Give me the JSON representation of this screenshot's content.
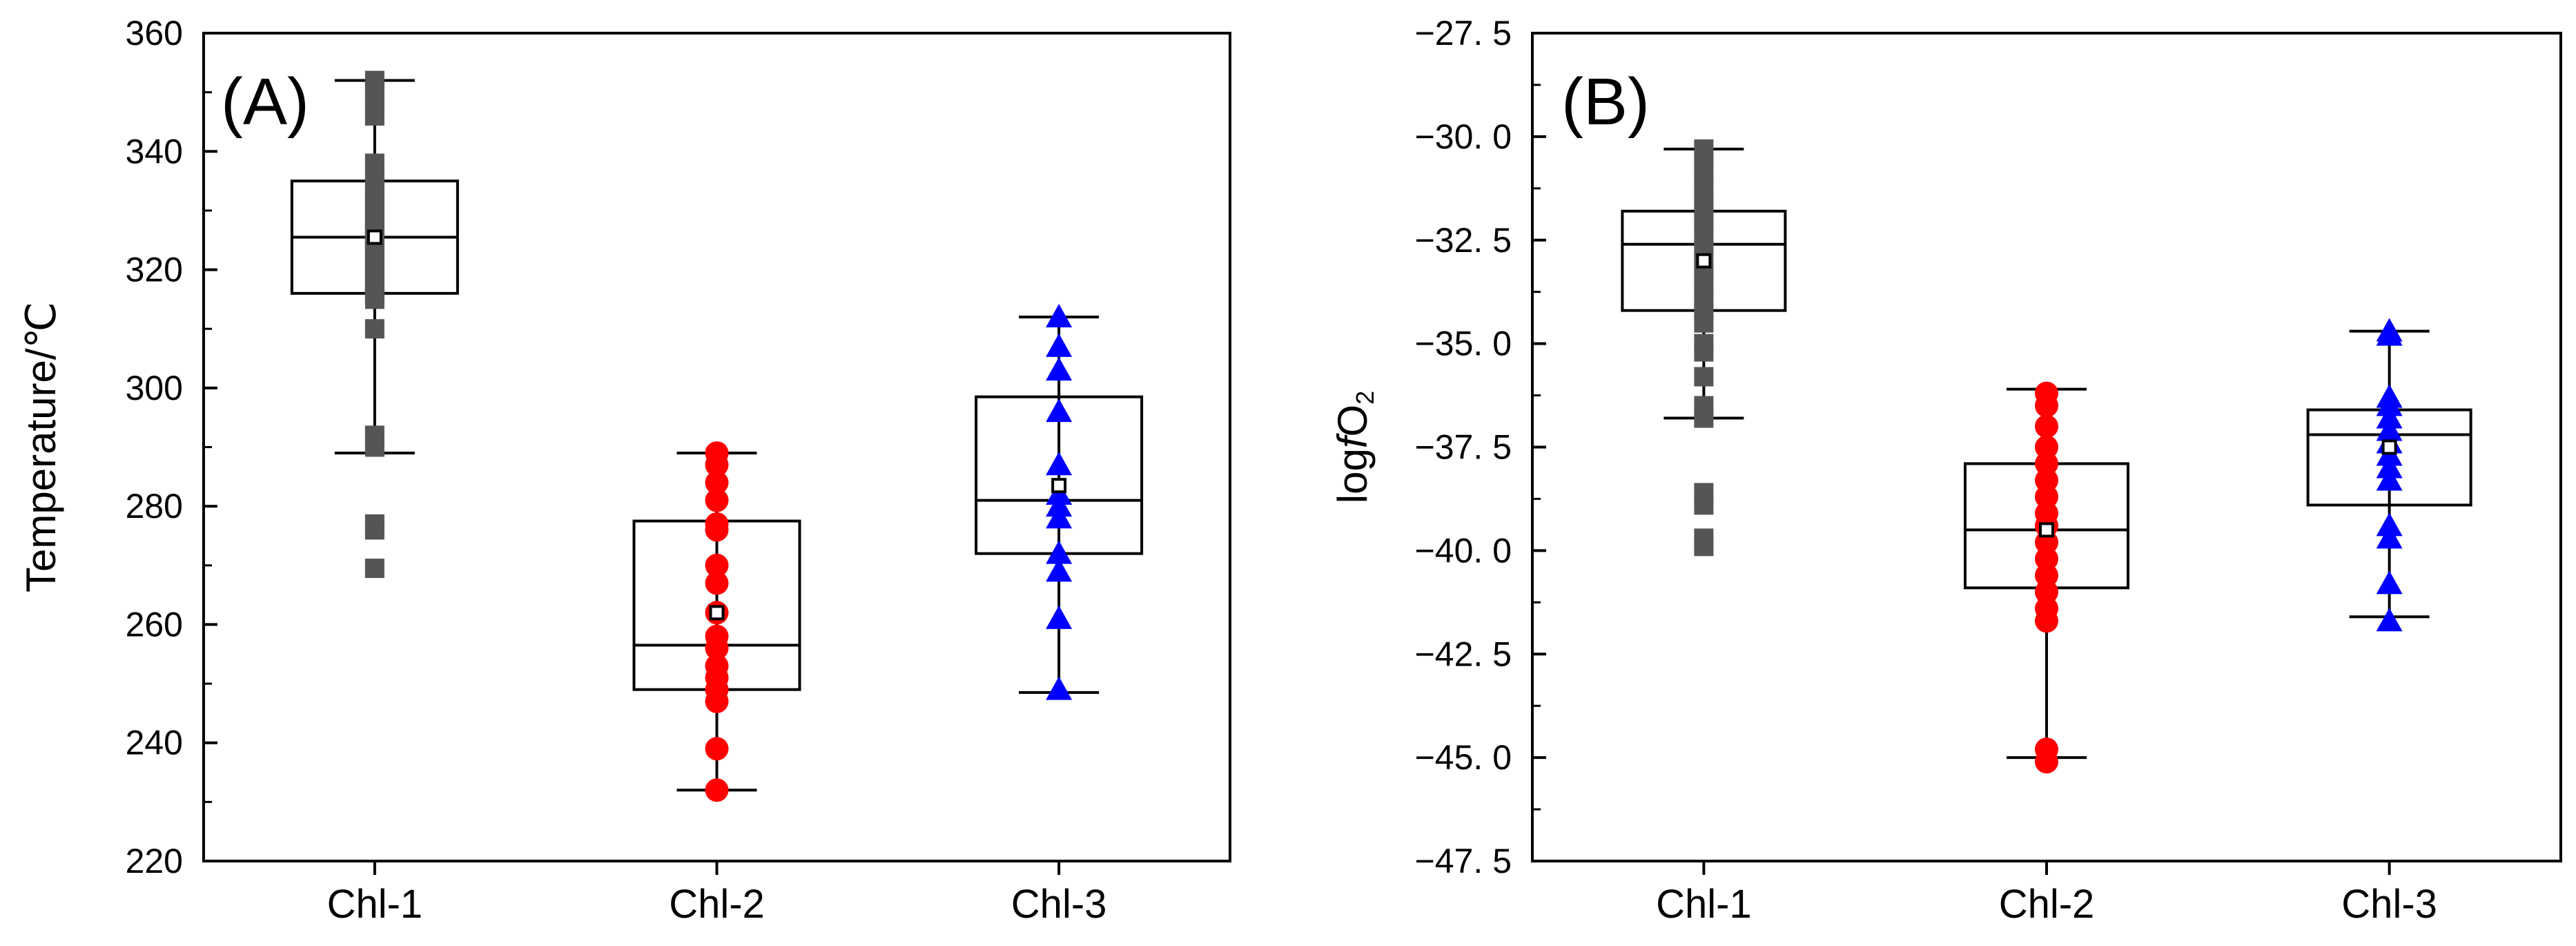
{
  "figure": {
    "background": "#ffffff"
  },
  "chart_data": [
    {
      "type": "box",
      "panel_label": "(A)",
      "title": "",
      "xlabel": "",
      "ylabel": "Temperature/℃",
      "ylim": [
        220,
        360
      ],
      "yticks": [
        220,
        240,
        260,
        280,
        300,
        320,
        340,
        360
      ],
      "ytick_labels": [
        "220",
        "240",
        "260",
        "280",
        "300",
        "320",
        "340",
        "360"
      ],
      "categories": [
        "Chl-1",
        "Chl-2",
        "Chl-3"
      ],
      "boxes": [
        {
          "category": "Chl-1",
          "whisker_low": 289,
          "q1": 316,
          "median": 325.5,
          "q3": 335,
          "whisker_high": 352,
          "mean": 325.5,
          "marker": "square",
          "color": "#555555",
          "points": [
            352,
            350,
            348,
            346,
            338,
            336,
            334,
            333,
            332,
            331,
            330,
            329,
            328,
            327,
            326,
            325,
            324,
            323,
            322,
            321,
            320,
            319,
            318,
            317,
            316,
            315,
            310,
            292,
            290,
            277,
            276,
            269.5
          ]
        },
        {
          "category": "Chl-2",
          "whisker_low": 232,
          "q1": 249,
          "median": 256.5,
          "q3": 277.5,
          "whisker_high": 289,
          "mean": 262,
          "marker": "circle",
          "color": "#ff0000",
          "points": [
            289,
            287,
            284,
            281,
            277,
            276,
            270,
            267,
            262,
            258,
            256,
            253,
            251,
            249,
            247,
            239,
            232
          ]
        },
        {
          "category": "Chl-3",
          "whisker_low": 248.5,
          "q1": 272,
          "median": 281,
          "q3": 298.5,
          "whisker_high": 312,
          "mean": 283.5,
          "marker": "triangle",
          "color": "#0000ff",
          "points": [
            312,
            307,
            303,
            296,
            287,
            282,
            280,
            278,
            272,
            269,
            261,
            249
          ]
        }
      ]
    },
    {
      "type": "box",
      "panel_label": "(B)",
      "title": "",
      "xlabel": "",
      "ylabel": "logfO₂",
      "ylabel_parts": {
        "prefix": "log",
        "italic": "f",
        "main": "O",
        "subscript": "2"
      },
      "ylim": [
        -47.5,
        -27.5
      ],
      "yticks": [
        -47.5,
        -45,
        -42.5,
        -40,
        -37.5,
        -35,
        -32.5,
        -30,
        -27.5
      ],
      "ytick_labels": [
        "−47. 5",
        "−45. 0",
        "−42. 5",
        "−40. 0",
        "−37. 5",
        "−35. 0",
        "−32. 5",
        "−30. 0",
        "−27. 5"
      ],
      "categories": [
        "Chl-1",
        "Chl-2",
        "Chl-3"
      ],
      "boxes": [
        {
          "category": "Chl-1",
          "whisker_low": -36.8,
          "q1": -34.2,
          "median": -32.6,
          "q3": -31.8,
          "whisker_high": -30.3,
          "mean": -33,
          "marker": "square",
          "color": "#555555",
          "points": [
            -30.3,
            -30.6,
            -30.9,
            -31.2,
            -31.5,
            -31.8,
            -32.1,
            -32.4,
            -32.7,
            -33.0,
            -33.3,
            -33.6,
            -33.9,
            -34.2,
            -34.5,
            -35.0,
            -35.2,
            -35.8,
            -36.5,
            -36.8,
            -38.6,
            -38.9,
            -39.7,
            -39.9
          ]
        },
        {
          "category": "Chl-2",
          "whisker_low": -45.0,
          "q1": -40.9,
          "median": -39.5,
          "q3": -37.9,
          "whisker_high": -36.1,
          "mean": -39.5,
          "marker": "circle",
          "color": "#ff0000",
          "points": [
            -36.2,
            -36.5,
            -37.0,
            -37.5,
            -37.9,
            -38.3,
            -38.7,
            -39.1,
            -39.4,
            -39.8,
            -40.2,
            -40.6,
            -41.0,
            -41.4,
            -41.7,
            -44.8,
            -45.1
          ]
        },
        {
          "category": "Chl-3",
          "whisker_low": -41.6,
          "q1": -38.9,
          "median": -37.2,
          "q3": -36.6,
          "whisker_high": -34.7,
          "mean": -37.5,
          "marker": "triangle",
          "color": "#0000ff",
          "points": [
            -34.7,
            -34.8,
            -36.3,
            -36.5,
            -36.8,
            -37.1,
            -37.4,
            -37.7,
            -38.0,
            -38.3,
            -39.4,
            -39.7,
            -40.8,
            -41.7
          ]
        }
      ]
    }
  ]
}
